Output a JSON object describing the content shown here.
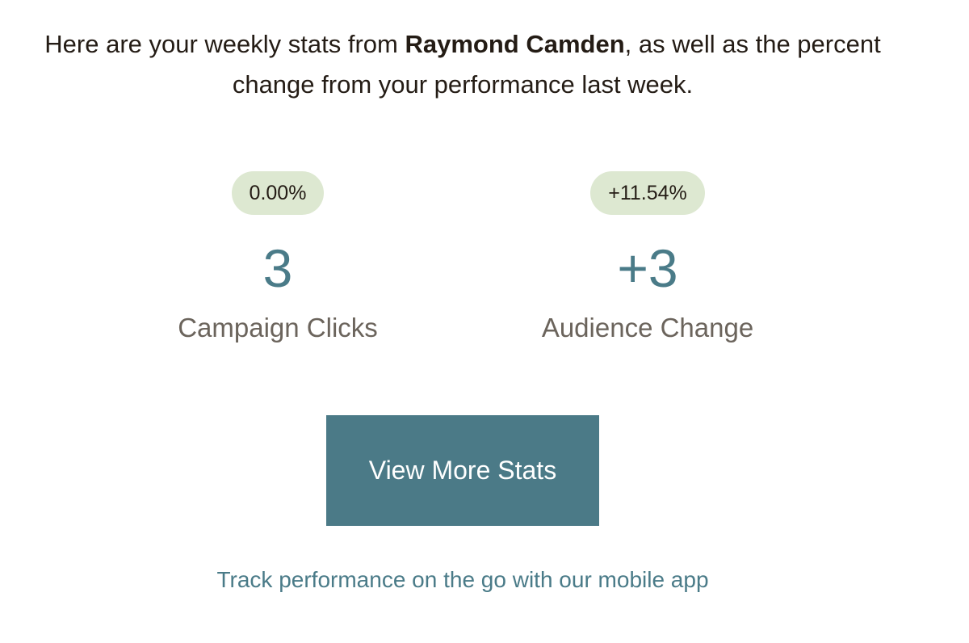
{
  "intro": {
    "prefix": "Here are your weekly stats from ",
    "name": "Raymond Camden",
    "suffix_line1": ", as well as the percent",
    "line2": "change from your performance last week."
  },
  "stats": [
    {
      "percent": "0.00%",
      "value": "3",
      "label": "Campaign Clicks"
    },
    {
      "percent": "+11.54%",
      "value": "+3",
      "label": "Audience Change"
    }
  ],
  "cta": {
    "label": "View More Stats"
  },
  "mobile_link": {
    "label": "Track performance on the go with our mobile app"
  },
  "colors": {
    "accent": "#4b7a87",
    "badge_bg": "#dde8d1",
    "text": "#241c15",
    "muted": "#6b645c"
  }
}
